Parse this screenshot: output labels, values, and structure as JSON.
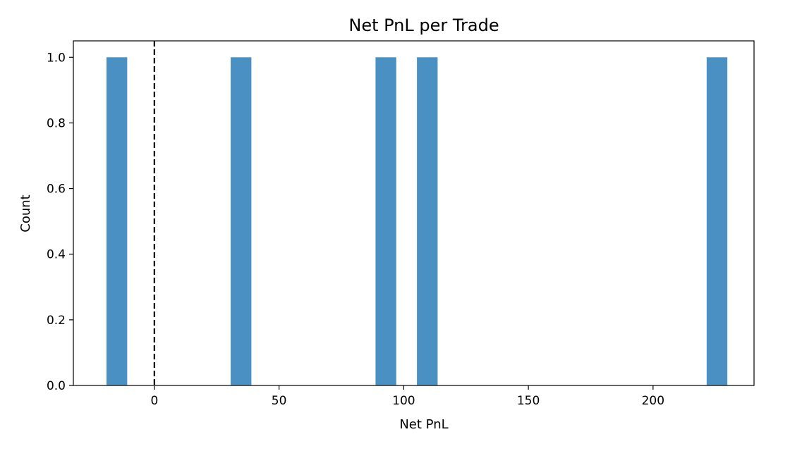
{
  "chart_data": {
    "type": "bar",
    "title": "Net PnL per Trade",
    "xlabel": "Net PnL",
    "ylabel": "Count",
    "xlim": [
      -32.5,
      240.5
    ],
    "ylim": [
      0,
      1.05
    ],
    "xticks": [
      0,
      50,
      100,
      150,
      200
    ],
    "yticks": [
      0.0,
      0.2,
      0.4,
      0.6,
      0.8,
      1.0
    ],
    "bin_width": 8.3,
    "bars": [
      {
        "x_start": -19.2,
        "x_end": -10.9,
        "count": 1
      },
      {
        "x_start": 30.6,
        "x_end": 38.9,
        "count": 1
      },
      {
        "x_start": 88.7,
        "x_end": 97.0,
        "count": 1
      },
      {
        "x_start": 105.3,
        "x_end": 113.6,
        "count": 1
      },
      {
        "x_start": 221.5,
        "x_end": 229.8,
        "count": 1
      }
    ],
    "reference_line": {
      "x": 0,
      "style": "dashed",
      "color": "#000000"
    },
    "bar_color": "#4a90c2",
    "grid": false,
    "legend": false
  }
}
